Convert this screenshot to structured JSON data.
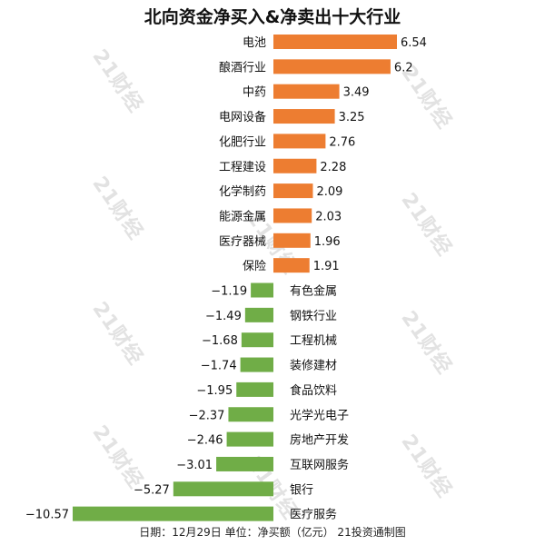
{
  "chart_data": {
    "type": "bar",
    "title": "北向资金净买入&净卖出十大行业",
    "orientation": "horizontal",
    "categories": [
      "电池",
      "酿酒行业",
      "中药",
      "电网设备",
      "化肥行业",
      "工程建设",
      "化学制药",
      "能源金属",
      "医疗器械",
      "保险",
      "有色金属",
      "钢铁行业",
      "工程机械",
      "装修建材",
      "食品饮料",
      "光学光电子",
      "房地产开发",
      "互联网服务",
      "银行",
      "医疗服务"
    ],
    "values": [
      6.54,
      6.2,
      3.49,
      3.25,
      2.76,
      2.28,
      2.09,
      2.03,
      1.96,
      1.91,
      -1.19,
      -1.49,
      -1.68,
      -1.74,
      -1.95,
      -2.37,
      -2.46,
      -3.01,
      -5.27,
      -10.57
    ],
    "value_labels": [
      "6.54",
      "6.2",
      "3.49",
      "3.25",
      "2.76",
      "2.28",
      "2.09",
      "2.03",
      "1.96",
      "1.91",
      "−1.19",
      "−1.49",
      "−1.68",
      "−1.74",
      "−1.95",
      "−2.37",
      "−2.46",
      "−3.01",
      "−5.27",
      "−10.57"
    ],
    "colors": {
      "positive": "#ED7D31",
      "negative": "#70AD47"
    },
    "xlim": [
      -10.57,
      6.54
    ],
    "grid": false,
    "legend": "none"
  },
  "footer": "日期：12月29日  单位：净买额（亿元）  21投资通制图",
  "watermark": "21财经"
}
